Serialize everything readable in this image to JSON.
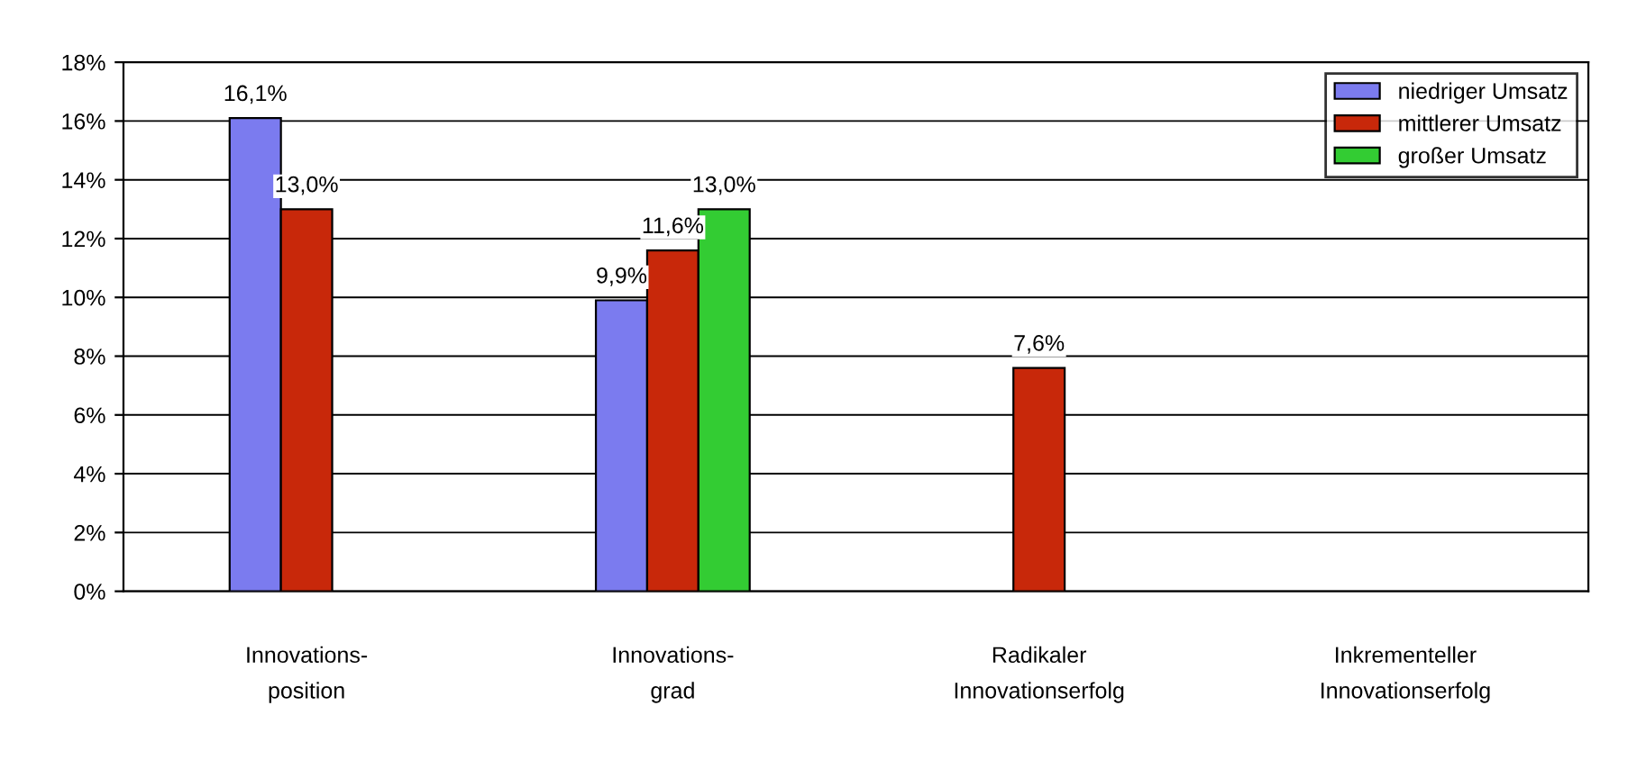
{
  "chart_data": {
    "type": "bar",
    "categories": [
      "Innovations-\nposition",
      "Innovations-\ngrad",
      "Radikaler\nInnovationserfolg",
      "Inkrementeller\nInnovationserfolg"
    ],
    "series": [
      {
        "name": "niedriger Umsatz",
        "color": "#7b7bef",
        "values": [
          16.1,
          9.9,
          null,
          null
        ],
        "value_labels": [
          "16,1%",
          "9,9%",
          null,
          null
        ]
      },
      {
        "name": "mittlerer Umsatz",
        "color": "#c8280a",
        "values": [
          13.0,
          11.6,
          7.6,
          null
        ],
        "value_labels": [
          "13,0%",
          "11,6%",
          "7,6%",
          null
        ]
      },
      {
        "name": "großer Umsatz",
        "color": "#33cc33",
        "values": [
          null,
          13.0,
          null,
          null
        ],
        "value_labels": [
          null,
          "13,0%",
          null,
          null
        ]
      }
    ],
    "ylim": [
      0,
      18
    ],
    "yticks": [
      {
        "value": 0,
        "label": "0%"
      },
      {
        "value": 2,
        "label": "2%"
      },
      {
        "value": 4,
        "label": "4%"
      },
      {
        "value": 6,
        "label": "6%"
      },
      {
        "value": 8,
        "label": "8%"
      },
      {
        "value": 10,
        "label": "10%"
      },
      {
        "value": 12,
        "label": "12%"
      },
      {
        "value": 14,
        "label": "14%"
      },
      {
        "value": 16,
        "label": "16%"
      },
      {
        "value": 18,
        "label": "18%"
      }
    ],
    "grid": "y",
    "legend": "top right"
  }
}
